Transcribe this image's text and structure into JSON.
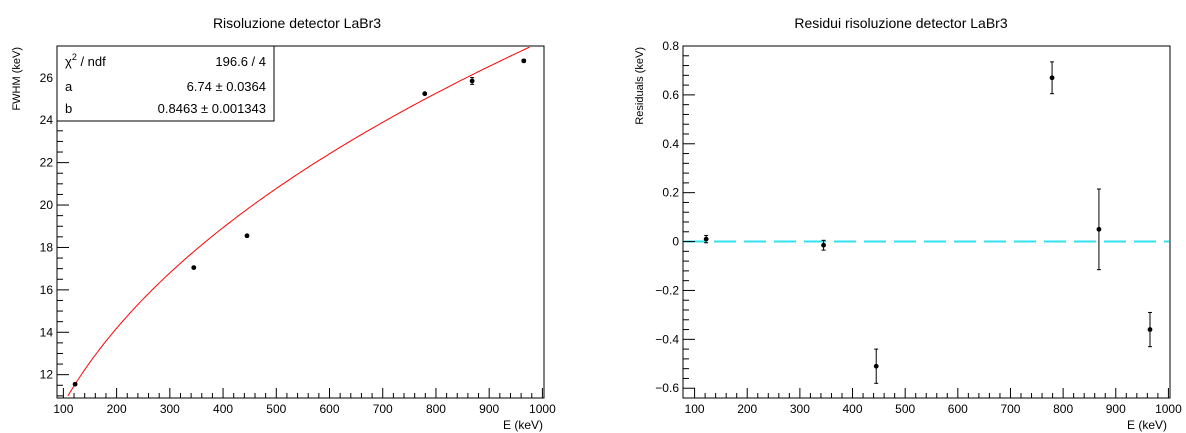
{
  "chart_data": [
    {
      "type": "scatter",
      "title": "Risoluzione detector LaBr3",
      "xlabel": "E (keV)",
      "ylabel": "FWHM (keV)",
      "xlim": [
        88,
        1003
      ],
      "ylim": [
        10.9,
        27.5
      ],
      "x_ticks": [
        100,
        200,
        300,
        400,
        500,
        600,
        700,
        800,
        900,
        1000
      ],
      "y_ticks": [
        12,
        14,
        16,
        18,
        20,
        22,
        24,
        26
      ],
      "grid": false,
      "points": [
        {
          "x": 122,
          "y": 11.55,
          "err": 0.03
        },
        {
          "x": 345,
          "y": 17.05,
          "err": 0.04
        },
        {
          "x": 445,
          "y": 18.55,
          "err": 0.04
        },
        {
          "x": 779,
          "y": 25.25,
          "err": 0.04
        },
        {
          "x": 868,
          "y": 25.85,
          "err": 0.16
        },
        {
          "x": 965,
          "y": 26.8,
          "err": 0.06
        }
      ],
      "fit": {
        "a": 6.74,
        "b": 0.8463,
        "color": "#ff0000"
      },
      "stats_box": {
        "rows": [
          {
            "label": "ndf",
            "value": "196.6 / 4"
          },
          {
            "label": "a",
            "value": "6.74 ± 0.0364"
          },
          {
            "label": "b",
            "value": "0.8463 ± 0.001343"
          }
        ],
        "chi_symbol": "χ",
        "chi_sup": "2",
        "chi_rest": " / ndf"
      }
    },
    {
      "type": "scatter",
      "title": "Residui risoluzione detector LaBr3",
      "xlabel": "E (keV)",
      "ylabel": "Residuals (keV)",
      "xlim": [
        78,
        1003
      ],
      "ylim": [
        -0.64,
        0.8
      ],
      "x_ticks": [
        100,
        200,
        300,
        400,
        500,
        600,
        700,
        800,
        900,
        1000
      ],
      "y_ticks": [
        "0.8",
        "0.6",
        "0.4",
        "0.2",
        "0",
        "−0.2",
        "−0.4",
        "−0.6"
      ],
      "y_tick_values": [
        0.8,
        0.6,
        0.4,
        0.2,
        0,
        -0.2,
        -0.4,
        -0.6
      ],
      "grid": false,
      "points": [
        {
          "x": 122,
          "y": 0.01,
          "err": 0.015
        },
        {
          "x": 345,
          "y": -0.015,
          "err": 0.02
        },
        {
          "x": 445,
          "y": -0.51,
          "err": 0.07
        },
        {
          "x": 779,
          "y": 0.67,
          "err": 0.065
        },
        {
          "x": 868,
          "y": 0.05,
          "err": 0.165
        },
        {
          "x": 965,
          "y": -0.36,
          "err": 0.07
        }
      ],
      "reference_line": {
        "y": 0,
        "color": "#33e0ee",
        "style": "dashed"
      }
    }
  ]
}
